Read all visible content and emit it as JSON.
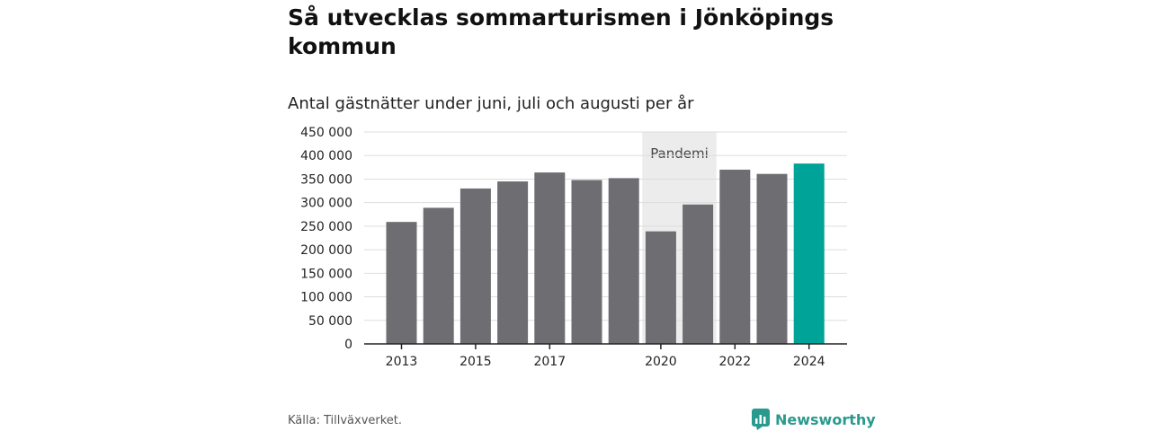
{
  "chart_data": {
    "type": "bar",
    "title": "Så utvecklas sommarturismen i Jönköpings kommun",
    "subtitle": "Antal gästnätter under juni, juli och augusti per år",
    "xlabel": "",
    "ylabel": "",
    "categories": [
      "2013",
      "2014",
      "2015",
      "2016",
      "2017",
      "2018",
      "2019",
      "2020",
      "2021",
      "2022",
      "2023",
      "2024"
    ],
    "x_tick_labels": [
      "2013",
      "",
      "2015",
      "",
      "2017",
      "",
      "",
      "2020",
      "",
      "2022",
      "",
      "2024"
    ],
    "values": [
      259000,
      289000,
      330000,
      345000,
      364000,
      348000,
      352000,
      239000,
      296000,
      370000,
      361000,
      383000
    ],
    "ylim": [
      0,
      450000
    ],
    "y_ticks": [
      0,
      50000,
      100000,
      150000,
      200000,
      250000,
      300000,
      350000,
      400000,
      450000
    ],
    "y_tick_labels": [
      "0",
      "50 000",
      "100 000",
      "150 000",
      "200 000",
      "250 000",
      "300 000",
      "350 000",
      "400 000",
      "450 000"
    ],
    "grid": true,
    "highlight_category": "2024",
    "annotation": {
      "label": "Pandemi",
      "from_category": "2020",
      "to_category": "2021"
    },
    "colors": {
      "bar": "#6e6d72",
      "highlight": "#00a398",
      "annotation_band": "#ececec",
      "grid": "#dddddd",
      "axis": "#222222"
    }
  },
  "source": "Källa: Tillväxverket.",
  "brand": {
    "name": "Newsworthy",
    "icon": "newsworthy-logo-icon",
    "color": "#2a9a8e"
  }
}
